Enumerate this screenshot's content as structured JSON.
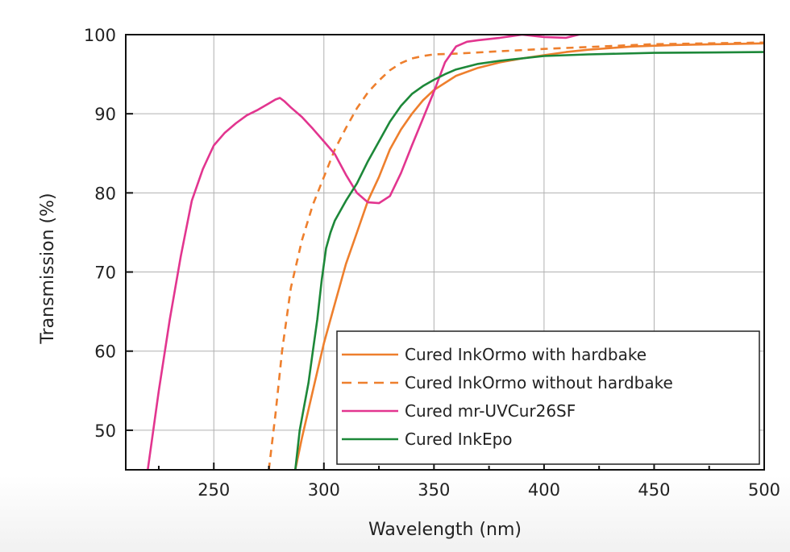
{
  "chart_data": {
    "type": "line",
    "xlabel": "Wavelength (nm)",
    "ylabel": "Transmission (%)",
    "xlim": [
      210,
      500
    ],
    "ylim": [
      45,
      100
    ],
    "xticks": [
      250,
      300,
      350,
      400,
      450,
      500
    ],
    "yticks": [
      50,
      60,
      70,
      80,
      90,
      100
    ],
    "grid": true,
    "legend_position": "bottom-right",
    "series": [
      {
        "name": "Cured InkOrmo with hardbake",
        "color": "#EE7F2D",
        "style": "solid",
        "x": [
          287,
          290,
          295,
          300,
          305,
          310,
          315,
          320,
          325,
          330,
          335,
          340,
          345,
          350,
          360,
          370,
          380,
          390,
          400,
          410,
          420,
          440,
          460,
          480,
          500
        ],
        "y": [
          45,
          49,
          55,
          61,
          66,
          71,
          75,
          79,
          82,
          85.5,
          88,
          90,
          91.7,
          93,
          94.8,
          95.8,
          96.5,
          97,
          97.4,
          97.8,
          98.1,
          98.5,
          98.7,
          98.8,
          98.9
        ]
      },
      {
        "name": "Cured InkOrmo without hardbake",
        "color": "#EE7F2D",
        "style": "dashed",
        "x": [
          275,
          278,
          281,
          285,
          290,
          295,
          300,
          305,
          310,
          315,
          320,
          325,
          330,
          335,
          340,
          345,
          350,
          360,
          380,
          400,
          450,
          500
        ],
        "y": [
          45,
          52,
          60,
          68,
          74,
          78.5,
          82,
          85.5,
          88.2,
          90.7,
          92.7,
          94.2,
          95.5,
          96.4,
          97,
          97.3,
          97.5,
          97.6,
          97.9,
          98.2,
          98.8,
          99
        ]
      },
      {
        "name": "Cured mr-UVCur26SF",
        "color": "#E2358F",
        "style": "solid",
        "x": [
          220,
          225,
          230,
          235,
          240,
          245,
          250,
          255,
          260,
          265,
          270,
          275,
          278,
          280,
          282,
          285,
          290,
          295,
          300,
          305,
          310,
          315,
          320,
          325,
          330,
          335,
          340,
          345,
          350,
          355,
          360,
          365,
          370,
          380,
          390,
          400,
          410,
          420,
          430,
          450,
          500
        ],
        "y": [
          45,
          55,
          64,
          72,
          79,
          83,
          86,
          87.6,
          88.8,
          89.8,
          90.5,
          91.3,
          91.8,
          92,
          91.6,
          90.8,
          89.6,
          88.1,
          86.5,
          84.9,
          82.3,
          80,
          78.8,
          78.7,
          79.6,
          82.5,
          86,
          89.4,
          92.8,
          96.5,
          98.5,
          99.1,
          99.3,
          99.6,
          100,
          99.7,
          99.6,
          100.3,
          100.8,
          101.5,
          102
        ]
      },
      {
        "name": "Cured InkEpo",
        "color": "#1D8839",
        "style": "solid",
        "x": [
          287,
          289,
          291,
          293,
          295,
          297,
          299,
          301,
          303,
          305,
          310,
          315,
          320,
          325,
          330,
          335,
          340,
          345,
          350,
          355,
          360,
          370,
          380,
          400,
          420,
          450,
          500
        ],
        "y": [
          45,
          50,
          53,
          56,
          60,
          64,
          69,
          73,
          75,
          76.5,
          79,
          81.2,
          84,
          86.5,
          89,
          91,
          92.5,
          93.5,
          94.3,
          95,
          95.6,
          96.3,
          96.7,
          97.3,
          97.5,
          97.7,
          97.8
        ]
      }
    ]
  }
}
